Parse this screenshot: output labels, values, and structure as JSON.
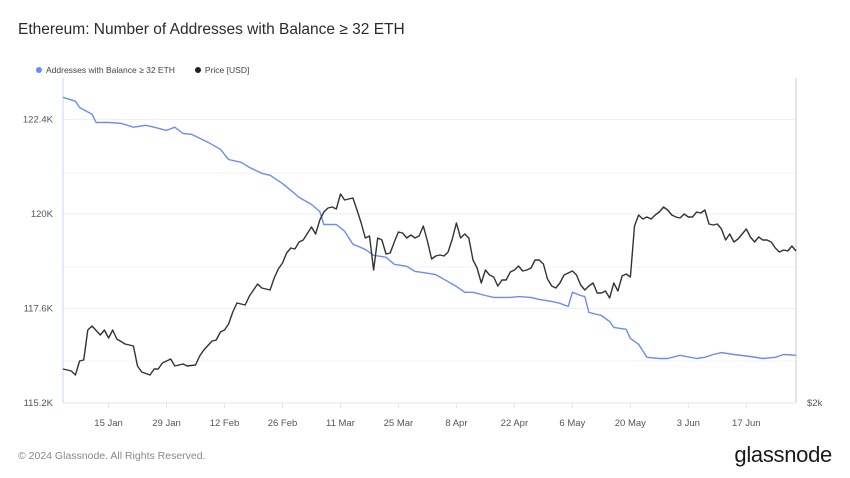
{
  "title": "Ethereum: Number of Addresses with Balance ≥ 32 ETH",
  "footer": "© 2024 Glassnode. All Rights Reserved.",
  "logo": "glassnode",
  "chart_data": {
    "type": "line",
    "title": "Ethereum: Number of Addresses with Balance ≥ 32 ETH",
    "legend_position": "top-left",
    "grid": true,
    "x_tick_labels": [
      "15 Jan",
      "29 Jan",
      "12 Feb",
      "26 Feb",
      "11 Mar",
      "25 Mar",
      "8 Apr",
      "22 Apr",
      "6 May",
      "20 May",
      "3 Jun",
      "17 Jun"
    ],
    "x_tick_dates": [
      "2024-01-15",
      "2024-01-29",
      "2024-02-12",
      "2024-02-26",
      "2024-03-11",
      "2024-03-25",
      "2024-04-08",
      "2024-04-22",
      "2024-05-06",
      "2024-05-20",
      "2024-06-03",
      "2024-06-17"
    ],
    "xlim": [
      "2024-01-04",
      "2024-06-29"
    ],
    "y_left": {
      "ticks": [
        115200,
        117600,
        120000,
        122400
      ],
      "tick_labels": [
        "115.2K",
        "117.6K",
        "120K",
        "122.4K"
      ],
      "ylim": [
        115200,
        123450
      ]
    },
    "y_right": {
      "tick_labels": [
        "$2k"
      ],
      "ylim": [
        2000,
        5250
      ],
      "unit": "USD"
    },
    "series": [
      {
        "name": "Addresses with Balance ≥ 32 ETH",
        "axis": "left",
        "color": "#6b8cf5",
        "points": [
          [
            "2024-01-04",
            122960
          ],
          [
            "2024-01-07",
            122860
          ],
          [
            "2024-01-08",
            122700
          ],
          [
            "2024-01-11",
            122530
          ],
          [
            "2024-01-12",
            122320
          ],
          [
            "2024-01-15",
            122320
          ],
          [
            "2024-01-18",
            122300
          ],
          [
            "2024-01-21",
            122200
          ],
          [
            "2024-01-24",
            122250
          ],
          [
            "2024-01-26",
            122200
          ],
          [
            "2024-01-29",
            122120
          ],
          [
            "2024-01-31",
            122200
          ],
          [
            "2024-02-02",
            122040
          ],
          [
            "2024-02-04",
            122020
          ],
          [
            "2024-02-06",
            121920
          ],
          [
            "2024-02-08",
            121820
          ],
          [
            "2024-02-11",
            121640
          ],
          [
            "2024-02-13",
            121380
          ],
          [
            "2024-02-16",
            121310
          ],
          [
            "2024-02-18",
            121180
          ],
          [
            "2024-02-21",
            121030
          ],
          [
            "2024-02-23",
            120980
          ],
          [
            "2024-02-26",
            120770
          ],
          [
            "2024-02-28",
            120600
          ],
          [
            "2024-03-01",
            120420
          ],
          [
            "2024-03-04",
            120240
          ],
          [
            "2024-03-06",
            120060
          ],
          [
            "2024-03-07",
            119730
          ],
          [
            "2024-03-10",
            119730
          ],
          [
            "2024-03-12",
            119560
          ],
          [
            "2024-03-14",
            119230
          ],
          [
            "2024-03-17",
            119100
          ],
          [
            "2024-03-19",
            118950
          ],
          [
            "2024-03-22",
            118900
          ],
          [
            "2024-03-24",
            118720
          ],
          [
            "2024-03-27",
            118670
          ],
          [
            "2024-03-29",
            118540
          ],
          [
            "2024-03-31",
            118510
          ],
          [
            "2024-04-03",
            118460
          ],
          [
            "2024-04-05",
            118340
          ],
          [
            "2024-04-08",
            118160
          ],
          [
            "2024-04-10",
            118010
          ],
          [
            "2024-04-12",
            118010
          ],
          [
            "2024-04-15",
            117930
          ],
          [
            "2024-04-17",
            117880
          ],
          [
            "2024-04-21",
            117880
          ],
          [
            "2024-04-23",
            117900
          ],
          [
            "2024-04-26",
            117880
          ],
          [
            "2024-04-28",
            117830
          ],
          [
            "2024-05-01",
            117780
          ],
          [
            "2024-05-03",
            117730
          ],
          [
            "2024-05-05",
            117650
          ],
          [
            "2024-05-06",
            118010
          ],
          [
            "2024-05-08",
            117930
          ],
          [
            "2024-05-09",
            117900
          ],
          [
            "2024-05-10",
            117500
          ],
          [
            "2024-05-13",
            117420
          ],
          [
            "2024-05-15",
            117270
          ],
          [
            "2024-05-16",
            117120
          ],
          [
            "2024-05-19",
            117070
          ],
          [
            "2024-05-20",
            116840
          ],
          [
            "2024-05-22",
            116690
          ],
          [
            "2024-05-24",
            116360
          ],
          [
            "2024-05-27",
            116330
          ],
          [
            "2024-05-29",
            116330
          ],
          [
            "2024-06-01",
            116410
          ],
          [
            "2024-06-05",
            116330
          ],
          [
            "2024-06-07",
            116360
          ],
          [
            "2024-06-09",
            116430
          ],
          [
            "2024-06-11",
            116480
          ],
          [
            "2024-06-14",
            116430
          ],
          [
            "2024-06-18",
            116380
          ],
          [
            "2024-06-21",
            116330
          ],
          [
            "2024-06-24",
            116360
          ],
          [
            "2024-06-26",
            116430
          ],
          [
            "2024-06-29",
            116410
          ]
        ]
      },
      {
        "name": "Price [USD]",
        "axis": "right",
        "color": "#333333",
        "points": [
          [
            "2024-01-04",
            2340
          ],
          [
            "2024-01-06",
            2320
          ],
          [
            "2024-01-07",
            2280
          ],
          [
            "2024-01-08",
            2420
          ],
          [
            "2024-01-09",
            2430
          ],
          [
            "2024-01-10",
            2730
          ],
          [
            "2024-01-11",
            2770
          ],
          [
            "2024-01-13",
            2680
          ],
          [
            "2024-01-14",
            2730
          ],
          [
            "2024-01-15",
            2650
          ],
          [
            "2024-01-16",
            2730
          ],
          [
            "2024-01-17",
            2640
          ],
          [
            "2024-01-19",
            2590
          ],
          [
            "2024-01-21",
            2570
          ],
          [
            "2024-01-22",
            2370
          ],
          [
            "2024-01-23",
            2310
          ],
          [
            "2024-01-25",
            2280
          ],
          [
            "2024-01-26",
            2340
          ],
          [
            "2024-01-27",
            2340
          ],
          [
            "2024-01-28",
            2400
          ],
          [
            "2024-01-30",
            2440
          ],
          [
            "2024-01-31",
            2370
          ],
          [
            "2024-02-02",
            2390
          ],
          [
            "2024-02-03",
            2370
          ],
          [
            "2024-02-05",
            2380
          ],
          [
            "2024-02-06",
            2470
          ],
          [
            "2024-02-07",
            2530
          ],
          [
            "2024-02-09",
            2620
          ],
          [
            "2024-02-10",
            2630
          ],
          [
            "2024-02-11",
            2710
          ],
          [
            "2024-02-12",
            2730
          ],
          [
            "2024-02-13",
            2790
          ],
          [
            "2024-02-14",
            2910
          ],
          [
            "2024-02-15",
            3000
          ],
          [
            "2024-02-17",
            2980
          ],
          [
            "2024-02-18",
            3070
          ],
          [
            "2024-02-19",
            3130
          ],
          [
            "2024-02-20",
            3190
          ],
          [
            "2024-02-21",
            3150
          ],
          [
            "2024-02-23",
            3130
          ],
          [
            "2024-02-24",
            3250
          ],
          [
            "2024-02-25",
            3340
          ],
          [
            "2024-02-26",
            3400
          ],
          [
            "2024-02-27",
            3500
          ],
          [
            "2024-02-28",
            3550
          ],
          [
            "2024-02-29",
            3540
          ],
          [
            "2024-03-01",
            3610
          ],
          [
            "2024-03-02",
            3630
          ],
          [
            "2024-03-04",
            3760
          ],
          [
            "2024-03-05",
            3690
          ],
          [
            "2024-03-06",
            3830
          ],
          [
            "2024-03-07",
            3910
          ],
          [
            "2024-03-08",
            3950
          ],
          [
            "2024-03-09",
            3960
          ],
          [
            "2024-03-10",
            3940
          ],
          [
            "2024-03-11",
            4090
          ],
          [
            "2024-03-12",
            4030
          ],
          [
            "2024-03-14",
            4050
          ],
          [
            "2024-03-15",
            3930
          ],
          [
            "2024-03-16",
            3800
          ],
          [
            "2024-03-17",
            3650
          ],
          [
            "2024-03-18",
            3670
          ],
          [
            "2024-03-19",
            3330
          ],
          [
            "2024-03-20",
            3650
          ],
          [
            "2024-03-21",
            3630
          ],
          [
            "2024-03-22",
            3490
          ],
          [
            "2024-03-23",
            3500
          ],
          [
            "2024-03-24",
            3610
          ],
          [
            "2024-03-25",
            3710
          ],
          [
            "2024-03-26",
            3700
          ],
          [
            "2024-03-27",
            3650
          ],
          [
            "2024-03-28",
            3680
          ],
          [
            "2024-03-29",
            3650
          ],
          [
            "2024-03-30",
            3670
          ],
          [
            "2024-03-31",
            3770
          ],
          [
            "2024-04-01",
            3620
          ],
          [
            "2024-04-02",
            3440
          ],
          [
            "2024-04-03",
            3470
          ],
          [
            "2024-04-04",
            3480
          ],
          [
            "2024-04-05",
            3470
          ],
          [
            "2024-04-06",
            3510
          ],
          [
            "2024-04-07",
            3640
          ],
          [
            "2024-04-08",
            3800
          ],
          [
            "2024-04-09",
            3650
          ],
          [
            "2024-04-10",
            3690
          ],
          [
            "2024-04-11",
            3650
          ],
          [
            "2024-04-12",
            3430
          ],
          [
            "2024-04-13",
            3350
          ],
          [
            "2024-04-14",
            3200
          ],
          [
            "2024-04-15",
            3330
          ],
          [
            "2024-04-16",
            3280
          ],
          [
            "2024-04-17",
            3260
          ],
          [
            "2024-04-18",
            3170
          ],
          [
            "2024-04-19",
            3230
          ],
          [
            "2024-04-20",
            3230
          ],
          [
            "2024-04-21",
            3310
          ],
          [
            "2024-04-22",
            3330
          ],
          [
            "2024-04-23",
            3370
          ],
          [
            "2024-04-24",
            3320
          ],
          [
            "2024-04-25",
            3330
          ],
          [
            "2024-04-26",
            3350
          ],
          [
            "2024-04-27",
            3430
          ],
          [
            "2024-04-28",
            3430
          ],
          [
            "2024-04-29",
            3390
          ],
          [
            "2024-04-30",
            3240
          ],
          [
            "2024-05-01",
            3170
          ],
          [
            "2024-05-02",
            3150
          ],
          [
            "2024-05-03",
            3200
          ],
          [
            "2024-05-04",
            3280
          ],
          [
            "2024-05-05",
            3300
          ],
          [
            "2024-05-06",
            3320
          ],
          [
            "2024-05-07",
            3280
          ],
          [
            "2024-05-08",
            3180
          ],
          [
            "2024-05-09",
            3130
          ],
          [
            "2024-05-10",
            3170
          ],
          [
            "2024-05-11",
            3200
          ],
          [
            "2024-05-12",
            3100
          ],
          [
            "2024-05-13",
            3100
          ],
          [
            "2024-05-14",
            3120
          ],
          [
            "2024-05-15",
            3050
          ],
          [
            "2024-05-16",
            3200
          ],
          [
            "2024-05-17",
            3120
          ],
          [
            "2024-05-18",
            3270
          ],
          [
            "2024-05-19",
            3290
          ],
          [
            "2024-05-20",
            3260
          ],
          [
            "2024-05-21",
            3770
          ],
          [
            "2024-05-22",
            3880
          ],
          [
            "2024-05-23",
            3840
          ],
          [
            "2024-05-24",
            3860
          ],
          [
            "2024-05-25",
            3840
          ],
          [
            "2024-05-26",
            3880
          ],
          [
            "2024-05-27",
            3910
          ],
          [
            "2024-05-28",
            3960
          ],
          [
            "2024-05-29",
            3930
          ],
          [
            "2024-05-30",
            3880
          ],
          [
            "2024-05-31",
            3860
          ],
          [
            "2024-06-01",
            3850
          ],
          [
            "2024-06-02",
            3890
          ],
          [
            "2024-06-03",
            3860
          ],
          [
            "2024-06-04",
            3860
          ],
          [
            "2024-06-05",
            3910
          ],
          [
            "2024-06-06",
            3900
          ],
          [
            "2024-06-07",
            3930
          ],
          [
            "2024-06-08",
            3790
          ],
          [
            "2024-06-09",
            3780
          ],
          [
            "2024-06-10",
            3790
          ],
          [
            "2024-06-11",
            3740
          ],
          [
            "2024-06-12",
            3630
          ],
          [
            "2024-06-13",
            3690
          ],
          [
            "2024-06-14",
            3610
          ],
          [
            "2024-06-15",
            3640
          ],
          [
            "2024-06-16",
            3690
          ],
          [
            "2024-06-17",
            3740
          ],
          [
            "2024-06-18",
            3660
          ],
          [
            "2024-06-19",
            3610
          ],
          [
            "2024-06-20",
            3660
          ],
          [
            "2024-06-21",
            3630
          ],
          [
            "2024-06-22",
            3630
          ],
          [
            "2024-06-23",
            3610
          ],
          [
            "2024-06-24",
            3550
          ],
          [
            "2024-06-25",
            3510
          ],
          [
            "2024-06-26",
            3530
          ],
          [
            "2024-06-27",
            3520
          ],
          [
            "2024-06-28",
            3570
          ],
          [
            "2024-06-29",
            3520
          ]
        ]
      }
    ]
  }
}
